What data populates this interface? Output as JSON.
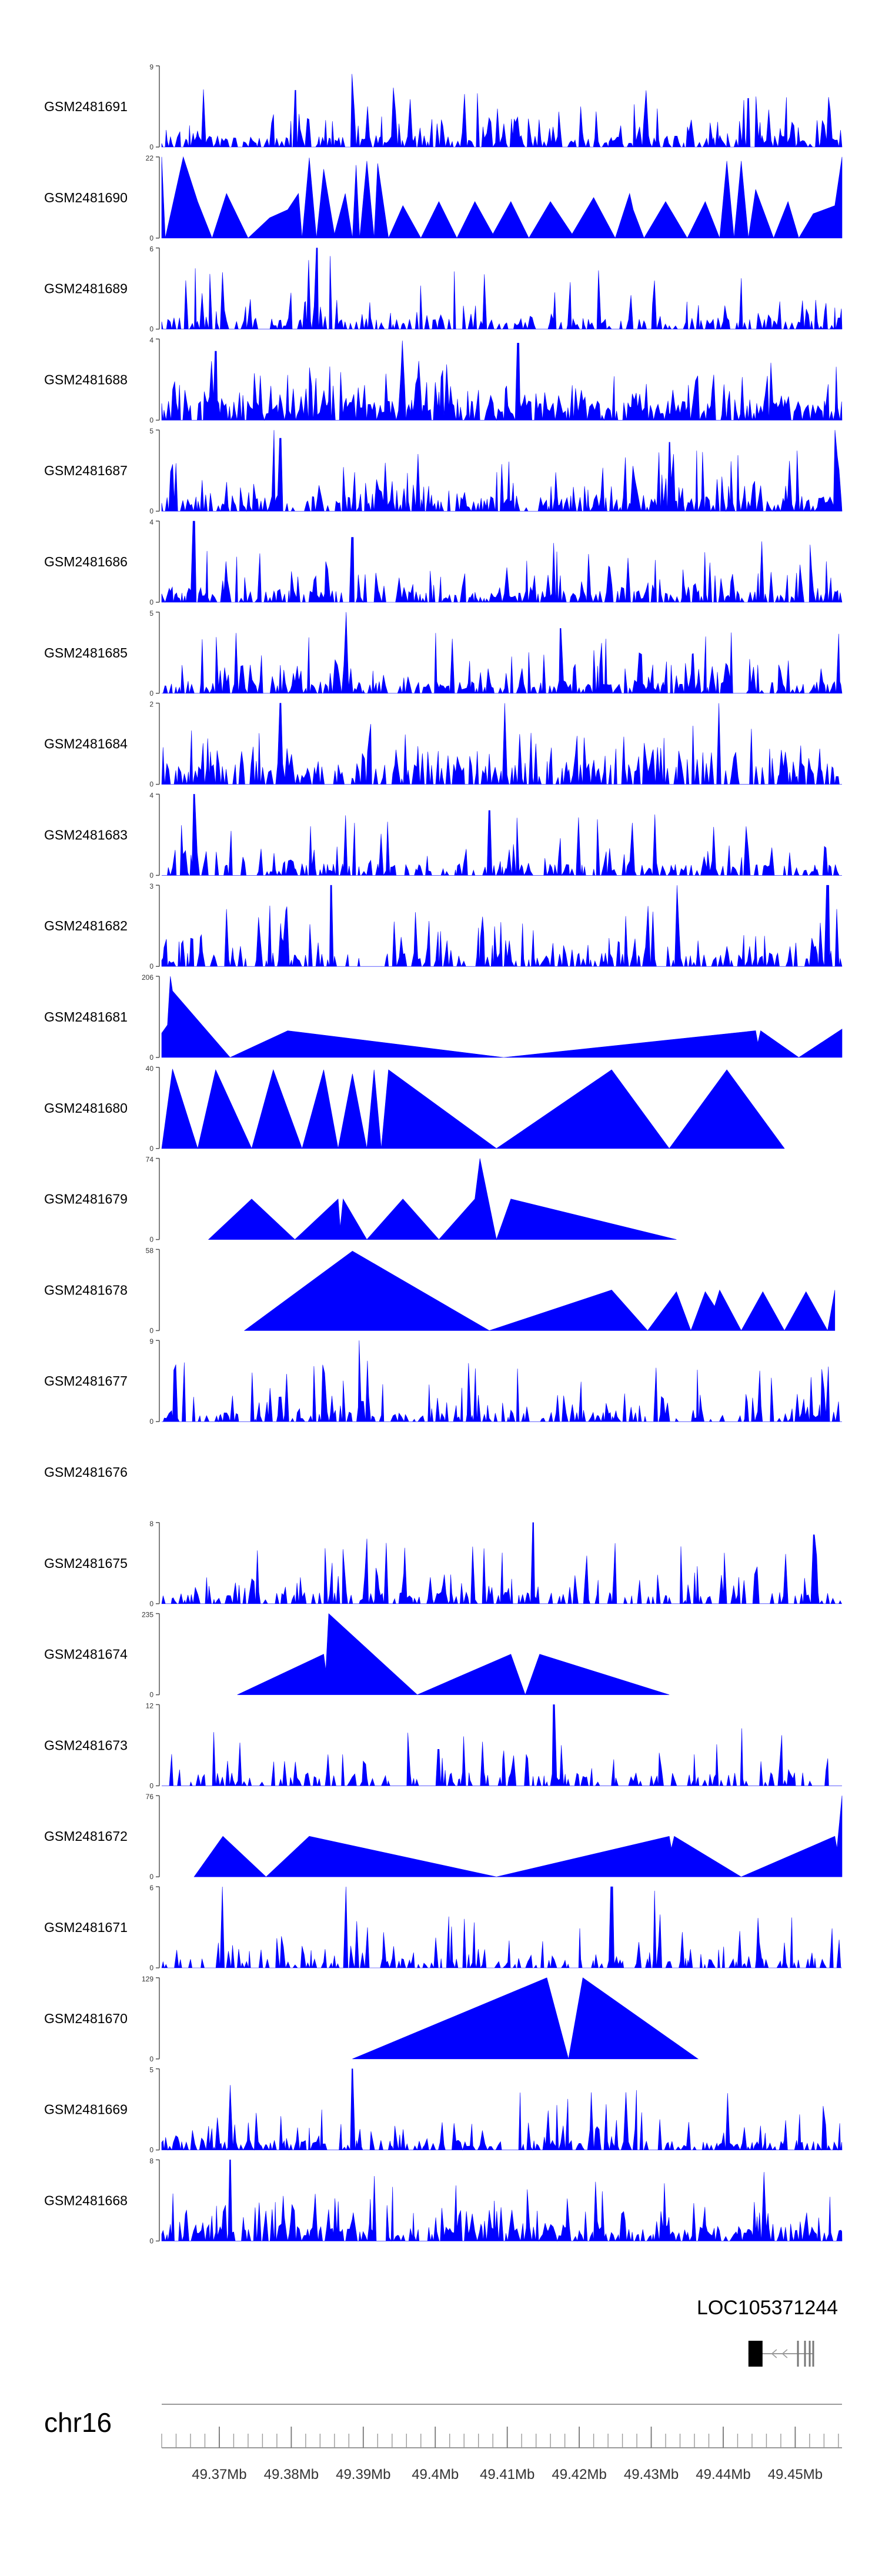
{
  "chart_data": {
    "type": "area",
    "title": "",
    "x_axis": {
      "chromosome": "chr16",
      "range_mb": [
        49.362,
        49.4565
      ],
      "tick_labels": [
        "49.37Mb",
        "49.38Mb",
        "49.39Mb",
        "49.4Mb",
        "49.41Mb",
        "49.42Mb",
        "49.43Mb",
        "49.44Mb",
        "49.45Mb"
      ],
      "tick_values": [
        49.37,
        49.38,
        49.39,
        49.4,
        49.41,
        49.42,
        49.43,
        49.44,
        49.45
      ]
    },
    "gene": {
      "name": "LOC105371244",
      "strand": "-",
      "start_mb": 49.4435,
      "end_mb": 49.4525
    },
    "tracks": [
      {
        "name": "GSM2481691",
        "ymax": 9,
        "ymax_label": "9",
        "style": "dense",
        "seed": 11,
        "density": 0.62,
        "base": 0.12,
        "spikes": [
          [
            49.3885,
            0.9
          ],
          [
            49.3805,
            0.7
          ],
          [
            49.4435,
            0.6
          ],
          [
            49.3905,
            0.5
          ]
        ]
      },
      {
        "name": "GSM2481690",
        "ymax": 22,
        "ymax_label": "22",
        "style": "sparse",
        "points": [
          [
            49.362,
            1.0
          ],
          [
            49.3625,
            0
          ],
          [
            49.365,
            1.0
          ],
          [
            49.367,
            0.45
          ],
          [
            49.369,
            0.0
          ],
          [
            49.371,
            0.55
          ],
          [
            49.374,
            0.0
          ],
          [
            49.377,
            0.25
          ],
          [
            49.3795,
            0.35
          ],
          [
            49.381,
            0.55
          ],
          [
            49.3815,
            0
          ],
          [
            49.3825,
            0.99
          ],
          [
            49.3835,
            0
          ],
          [
            49.3845,
            0.85
          ],
          [
            49.386,
            0.05
          ],
          [
            49.3875,
            0.55
          ],
          [
            49.3885,
            0
          ],
          [
            49.389,
            0.9
          ],
          [
            49.3895,
            0
          ],
          [
            49.3905,
            0.95
          ],
          [
            49.3915,
            0
          ],
          [
            49.392,
            0.92
          ],
          [
            49.3935,
            0.0
          ],
          [
            49.3955,
            0.4
          ],
          [
            49.398,
            0
          ],
          [
            49.4005,
            0.45
          ],
          [
            49.403,
            0.0
          ],
          [
            49.4055,
            0.45
          ],
          [
            49.408,
            0.05
          ],
          [
            49.4105,
            0.45
          ],
          [
            49.413,
            0.0
          ],
          [
            49.416,
            0.45
          ],
          [
            49.419,
            0.05
          ],
          [
            49.422,
            0.5
          ],
          [
            49.425,
            0.0
          ],
          [
            49.427,
            0.55
          ],
          [
            49.4275,
            0.35
          ],
          [
            49.429,
            0.0
          ],
          [
            49.432,
            0.45
          ],
          [
            49.435,
            0.0
          ],
          [
            49.4375,
            0.45
          ],
          [
            49.4395,
            0
          ],
          [
            49.4405,
            0.95
          ],
          [
            49.4415,
            0
          ],
          [
            49.4425,
            0.95
          ],
          [
            49.4435,
            0
          ],
          [
            49.4445,
            0.6
          ],
          [
            49.447,
            0.0
          ],
          [
            49.449,
            0.45
          ],
          [
            49.4505,
            0.0
          ],
          [
            49.4525,
            0.3
          ],
          [
            49.4555,
            0.4
          ],
          [
            49.4565,
            1.0
          ]
        ]
      },
      {
        "name": "GSM2481689",
        "ymax": 6,
        "ymax_label": "6",
        "style": "dense",
        "seed": 23,
        "density": 0.5,
        "base": 0.12,
        "spikes": [
          [
            49.3835,
            1.0
          ],
          [
            49.3855,
            0.9
          ],
          [
            49.3825,
            0.85
          ],
          [
            49.3655,
            0.6
          ],
          [
            49.3705,
            0.7
          ]
        ]
      },
      {
        "name": "GSM2481688",
        "ymax": 4,
        "ymax_label": "4",
        "style": "dense",
        "seed": 31,
        "density": 0.75,
        "base": 0.2,
        "spikes": [
          [
            49.3955,
            0.98
          ],
          [
            49.4115,
            0.95
          ],
          [
            49.3695,
            0.85
          ]
        ]
      },
      {
        "name": "GSM2481687",
        "ymax": 5,
        "ymax_label": "5",
        "style": "dense",
        "seed": 47,
        "density": 0.6,
        "base": 0.15,
        "spikes": [
          [
            49.3775,
            1.0
          ],
          [
            49.3785,
            0.9
          ],
          [
            49.4555,
            1.0
          ],
          [
            49.4325,
            0.85
          ]
        ]
      },
      {
        "name": "GSM2481686",
        "ymax": 4,
        "ymax_label": "4",
        "style": "dense",
        "seed": 53,
        "density": 0.55,
        "base": 0.12,
        "spikes": [
          [
            49.3665,
            1.0
          ],
          [
            49.3885,
            0.8
          ],
          [
            49.4455,
            0.75
          ]
        ]
      },
      {
        "name": "GSM2481685",
        "ymax": 5,
        "ymax_label": "5",
        "style": "dense",
        "seed": 61,
        "density": 0.6,
        "base": 0.12,
        "spikes": [
          [
            49.3875,
            1.0
          ],
          [
            49.4175,
            0.8
          ],
          [
            49.4375,
            0.7
          ]
        ]
      },
      {
        "name": "GSM2481684",
        "ymax": 2,
        "ymax_label": "2",
        "style": "dense",
        "seed": 71,
        "density": 0.55,
        "base": 0.22,
        "spikes": [
          [
            49.3785,
            1.0
          ],
          [
            49.4095,
            1.0
          ],
          [
            49.4395,
            1.0
          ]
        ]
      },
      {
        "name": "GSM2481683",
        "ymax": 4,
        "ymax_label": "4",
        "style": "dense",
        "seed": 83,
        "density": 0.5,
        "base": 0.12,
        "spikes": [
          [
            49.3665,
            1.0
          ],
          [
            49.4075,
            0.8
          ],
          [
            49.4305,
            0.75
          ]
        ]
      },
      {
        "name": "GSM2481682",
        "ymax": 3,
        "ymax_label": "3",
        "style": "dense",
        "seed": 97,
        "density": 0.5,
        "base": 0.14,
        "spikes": [
          [
            49.3855,
            1.0
          ],
          [
            49.4335,
            1.0
          ],
          [
            49.4545,
            1.0
          ]
        ]
      },
      {
        "name": "GSM2481681",
        "ymax": 206,
        "ymax_label": "206",
        "style": "sparse",
        "points": [
          [
            49.362,
            0.3
          ],
          [
            49.3628,
            0.4
          ],
          [
            49.3632,
            1.0
          ],
          [
            49.3635,
            0.82
          ],
          [
            49.3715,
            0.0
          ],
          [
            49.3795,
            0.33
          ],
          [
            49.4095,
            0.0
          ],
          [
            49.4445,
            0.33
          ],
          [
            49.4448,
            0.18
          ],
          [
            49.4452,
            0.33
          ],
          [
            49.4505,
            0.0
          ],
          [
            49.4565,
            0.35
          ]
        ]
      },
      {
        "name": "GSM2481680",
        "ymax": 40,
        "ymax_label": "40",
        "style": "sparse",
        "points": [
          [
            49.362,
            0.0
          ],
          [
            49.3635,
            0.98
          ],
          [
            49.367,
            0.0
          ],
          [
            49.3695,
            0.97
          ],
          [
            49.3745,
            0.0
          ],
          [
            49.3775,
            0.97
          ],
          [
            49.3815,
            0.0
          ],
          [
            49.3845,
            0.97
          ],
          [
            49.3865,
            0.0
          ],
          [
            49.3885,
            0.92
          ],
          [
            49.3905,
            0.0
          ],
          [
            49.3915,
            0.97
          ],
          [
            49.3925,
            0.0
          ],
          [
            49.3935,
            0.97
          ],
          [
            49.4085,
            0.0
          ],
          [
            49.4245,
            0.97
          ],
          [
            49.4325,
            0.0
          ],
          [
            49.4405,
            0.97
          ],
          [
            49.4485,
            0.0
          ]
        ]
      },
      {
        "name": "GSM2481679",
        "ymax": 74,
        "ymax_label": "74",
        "style": "sparse",
        "points": [
          [
            49.3685,
            0.0
          ],
          [
            49.3745,
            0.5
          ],
          [
            49.3805,
            0.0
          ],
          [
            49.3865,
            0.5
          ],
          [
            49.3868,
            0.15
          ],
          [
            49.3872,
            0.5
          ],
          [
            49.3905,
            0.0
          ],
          [
            49.3955,
            0.5
          ],
          [
            49.4005,
            0.0
          ],
          [
            49.4055,
            0.5
          ],
          [
            49.4062,
            1.0
          ],
          [
            49.4085,
            0.0
          ],
          [
            49.4105,
            0.5
          ],
          [
            49.4335,
            0.0
          ]
        ]
      },
      {
        "name": "GSM2481678",
        "ymax": 58,
        "ymax_label": "58",
        "style": "sparse",
        "points": [
          [
            49.3735,
            0.0
          ],
          [
            49.3885,
            0.98
          ],
          [
            49.4075,
            0.0
          ],
          [
            49.4245,
            0.5
          ],
          [
            49.4295,
            0.0
          ],
          [
            49.4335,
            0.48
          ],
          [
            49.4355,
            0.0
          ],
          [
            49.4375,
            0.48
          ],
          [
            49.4388,
            0.3
          ],
          [
            49.4395,
            0.5
          ],
          [
            49.4425,
            0.0
          ],
          [
            49.4455,
            0.48
          ],
          [
            49.4485,
            0.0
          ],
          [
            49.4515,
            0.48
          ],
          [
            49.4545,
            0.0
          ],
          [
            49.4555,
            0.5
          ]
        ]
      },
      {
        "name": "GSM2481677",
        "ymax": 9,
        "ymax_label": "9",
        "style": "dense",
        "seed": 113,
        "density": 0.45,
        "base": 0.1,
        "spikes": [
          [
            49.3895,
            1.0
          ],
          [
            49.3905,
            0.75
          ],
          [
            49.3845,
            0.7
          ],
          [
            49.3848,
            0.6
          ]
        ]
      },
      {
        "name": "GSM2481676",
        "ymax": null,
        "ymax_label": "",
        "style": "empty"
      },
      {
        "name": "GSM2481675",
        "ymax": 8,
        "ymax_label": "8",
        "style": "dense",
        "seed": 127,
        "density": 0.45,
        "base": 0.12,
        "spikes": [
          [
            49.4135,
            1.0
          ],
          [
            49.3855,
            0.95
          ],
          [
            49.3905,
            0.8
          ],
          [
            49.4525,
            0.85
          ]
        ]
      },
      {
        "name": "GSM2481674",
        "ymax": 235,
        "ymax_label": "235",
        "style": "sparse",
        "points": [
          [
            49.3725,
            0.0
          ],
          [
            49.3845,
            0.5
          ],
          [
            49.3848,
            0.3
          ],
          [
            49.3852,
            1.0
          ],
          [
            49.3975,
            0.0
          ],
          [
            49.4105,
            0.5
          ],
          [
            49.4125,
            0.0
          ],
          [
            49.4145,
            0.5
          ],
          [
            49.4325,
            0.0
          ]
        ]
      },
      {
        "name": "GSM2481673",
        "ymax": 12,
        "ymax_label": "12",
        "style": "dense",
        "seed": 139,
        "density": 0.35,
        "base": 0.14,
        "spikes": [
          [
            49.4165,
            1.0
          ],
          [
            49.4175,
            0.5
          ],
          [
            49.4005,
            0.45
          ]
        ]
      },
      {
        "name": "GSM2481672",
        "ymax": 76,
        "ymax_label": "76",
        "style": "sparse",
        "points": [
          [
            49.3665,
            0.0
          ],
          [
            49.3705,
            0.5
          ],
          [
            49.3765,
            0.0
          ],
          [
            49.3825,
            0.5
          ],
          [
            49.4085,
            0.0
          ],
          [
            49.4325,
            0.5
          ],
          [
            49.4328,
            0.35
          ],
          [
            49.4332,
            0.5
          ],
          [
            49.4425,
            0.0
          ],
          [
            49.4555,
            0.5
          ],
          [
            49.4558,
            0.35
          ],
          [
            49.4565,
            1.0
          ]
        ]
      },
      {
        "name": "GSM2481671",
        "ymax": 6,
        "ymax_label": "6",
        "style": "dense",
        "seed": 151,
        "density": 0.4,
        "base": 0.1,
        "spikes": [
          [
            49.3705,
            1.0
          ],
          [
            49.3875,
            1.0
          ],
          [
            49.4245,
            1.0
          ],
          [
            49.4305,
            0.95
          ]
        ]
      },
      {
        "name": "GSM2481670",
        "ymax": 129,
        "ymax_label": "129",
        "style": "sparse",
        "points": [
          [
            49.3885,
            0.0
          ],
          [
            49.4155,
            1.0
          ],
          [
            49.4185,
            0.0
          ],
          [
            49.4205,
            1.0
          ],
          [
            49.4365,
            0.0
          ]
        ]
      },
      {
        "name": "GSM2481669",
        "ymax": 5,
        "ymax_label": "5",
        "style": "dense",
        "seed": 163,
        "density": 0.55,
        "base": 0.1,
        "spikes": [
          [
            49.3885,
            1.0
          ],
          [
            49.3715,
            0.8
          ],
          [
            49.4405,
            0.7
          ]
        ]
      },
      {
        "name": "GSM2481668",
        "ymax": 8,
        "ymax_label": "8",
        "style": "dense",
        "seed": 179,
        "density": 0.7,
        "base": 0.15,
        "spikes": [
          [
            49.3715,
            1.0
          ],
          [
            49.3915,
            0.8
          ],
          [
            49.4455,
            0.85
          ]
        ]
      }
    ],
    "y_min_label": "0",
    "fill_color": "#0000ff",
    "label_color": "#333333",
    "axis_color": "#555555"
  }
}
